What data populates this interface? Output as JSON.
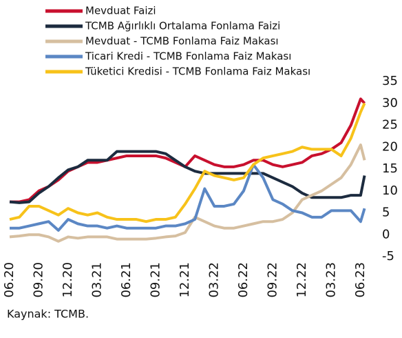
{
  "chart_data": {
    "type": "line",
    "source": "Kaynak: TCMB.",
    "x": [
      0,
      1,
      2,
      3,
      4,
      5,
      6,
      7,
      8,
      9,
      10,
      11,
      12,
      13,
      14,
      15,
      16,
      17,
      18,
      19,
      20,
      21,
      22,
      23,
      24,
      25,
      26,
      27,
      28,
      29,
      30,
      31,
      32,
      33,
      34,
      35,
      36,
      36.4
    ],
    "xlim": [
      0,
      36.5
    ],
    "xticks": [
      {
        "value": 0,
        "label": "06.20"
      },
      {
        "value": 3,
        "label": "09.20"
      },
      {
        "value": 6,
        "label": "12.20"
      },
      {
        "value": 9,
        "label": "03.21"
      },
      {
        "value": 12,
        "label": "06.21"
      },
      {
        "value": 15,
        "label": "09.21"
      },
      {
        "value": 18,
        "label": "12.21"
      },
      {
        "value": 21,
        "label": "03.22"
      },
      {
        "value": 24,
        "label": "06.22"
      },
      {
        "value": 27,
        "label": "09.22"
      },
      {
        "value": 30,
        "label": "12.22"
      },
      {
        "value": 33,
        "label": "03.23"
      },
      {
        "value": 36,
        "label": "06.23"
      }
    ],
    "ylim": [
      -5,
      35
    ],
    "yticks": [
      35,
      30,
      25,
      20,
      15,
      10,
      5,
      0,
      -5
    ],
    "grid": false,
    "series": [
      {
        "name": "Mevduat Faizi",
        "color": "#c8102e",
        "values": [
          7.5,
          7.5,
          8,
          10,
          11,
          12.5,
          14.5,
          15.5,
          16.5,
          16.5,
          17,
          17.5,
          18,
          18,
          18,
          18,
          17.5,
          16.5,
          15.5,
          18,
          17,
          16,
          15.5,
          15.5,
          16,
          17,
          17,
          16,
          15.5,
          16,
          16.5,
          18,
          18.5,
          19.5,
          21,
          25,
          31,
          30
        ]
      },
      {
        "name": "TCMB Ağırlıklı Ortalama Fonlama Faizi",
        "color": "#1c2b3f",
        "values": [
          7.5,
          7.3,
          7.5,
          9.5,
          11,
          13,
          14.8,
          15.5,
          17,
          17,
          17,
          19,
          19,
          19,
          19,
          19,
          18.5,
          17,
          15.5,
          14.5,
          14,
          14,
          14,
          14,
          14,
          14,
          14,
          13,
          12,
          11,
          9.5,
          8.5,
          8.5,
          8.5,
          8.5,
          9,
          9,
          13.5
        ]
      },
      {
        "name": "Mevduat - TCMB Fonlama Faiz Makası",
        "color": "#d6bfa0",
        "values": [
          -0.5,
          -0.3,
          0,
          0,
          -0.5,
          -1.5,
          -0.5,
          -0.8,
          -0.5,
          -0.5,
          -0.5,
          -1,
          -1,
          -1,
          -1,
          -0.8,
          -0.5,
          -0.3,
          0.5,
          4,
          3,
          2,
          1.5,
          1.5,
          2,
          2.5,
          3,
          3,
          3.5,
          5,
          8,
          9,
          10,
          11.5,
          13,
          16,
          20.5,
          17
        ]
      },
      {
        "name": "Ticari Kredi - TCMB Fonlama Faiz Makası",
        "color": "#5b87c4",
        "values": [
          1.5,
          1.5,
          2,
          2.5,
          3,
          1,
          3.5,
          2.5,
          2,
          2,
          1.5,
          2,
          1.5,
          1.5,
          1.5,
          1.5,
          2,
          2,
          2.5,
          3.5,
          10.5,
          6.5,
          6.5,
          7,
          10,
          16,
          13,
          8,
          7,
          5.5,
          5,
          4,
          4,
          5.5,
          5.5,
          5.5,
          3,
          6
        ]
      },
      {
        "name": "Tüketici Kredisi - TCMB Fonlama Faiz Makası",
        "color": "#f7c21a",
        "values": [
          3.5,
          4,
          6.5,
          6.5,
          5.5,
          4.5,
          6,
          5,
          4.5,
          5,
          4,
          3.5,
          3.5,
          3.5,
          3,
          3.5,
          3.5,
          4,
          7,
          10.5,
          14.5,
          13.5,
          13,
          12.5,
          13,
          16,
          17.5,
          18,
          18.5,
          19,
          20,
          19.5,
          19.5,
          19.5,
          18,
          22,
          28,
          30
        ]
      }
    ]
  }
}
